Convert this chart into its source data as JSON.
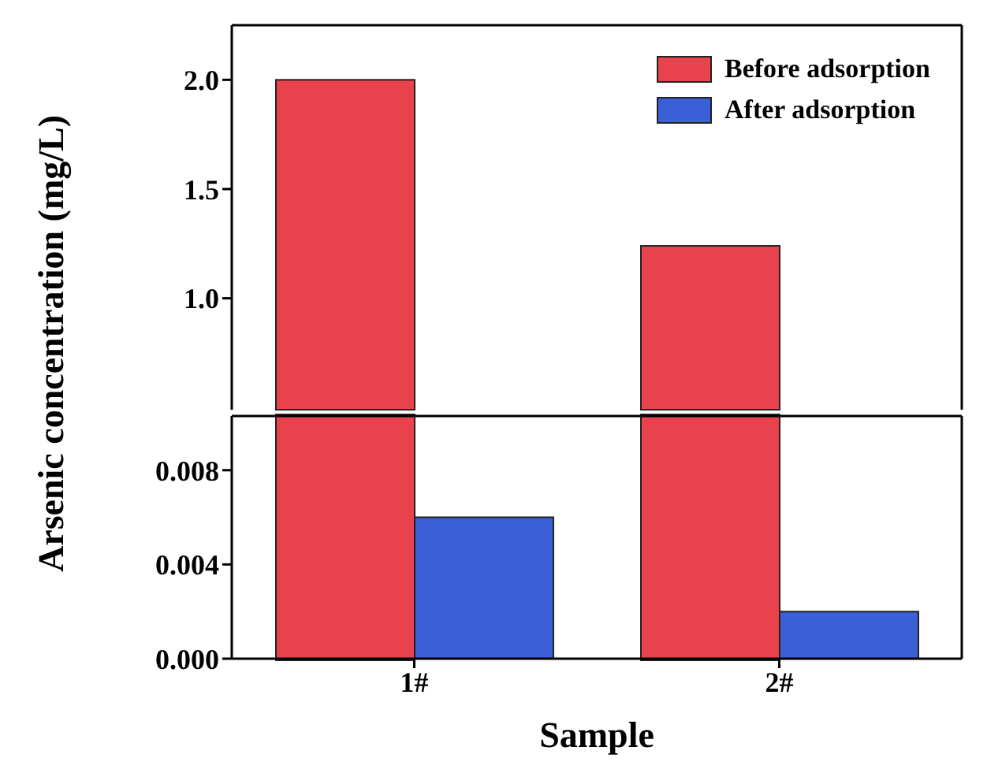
{
  "chart_data": [
    {
      "type": "bar",
      "categories": [
        null,
        null
      ],
      "series": [
        {
          "name": "Before adsorption",
          "color": "#e8424c",
          "values": [
            2.0,
            1.24
          ]
        },
        {
          "name": "After adsorption",
          "color": "#3a5fd6",
          "values": [
            null,
            null
          ]
        }
      ],
      "ylim": [
        0.49,
        2.25
      ],
      "yticks": [
        {
          "value": 1.0,
          "label": "1.0"
        },
        {
          "value": 1.5,
          "label": "1.5"
        },
        {
          "value": 2.0,
          "label": "2.0"
        }
      ],
      "tick_labels": "y",
      "legend": "top right",
      "grid": false
    },
    {
      "type": "bar",
      "categories": [
        "1#",
        "2#"
      ],
      "xlabel": "Sample",
      "ylabel": "Arsenic concentration (mg/L)",
      "series": [
        {
          "color": "#e8424c",
          "values": [
            null,
            null
          ]
        },
        {
          "color": "#3a5fd6",
          "values": [
            0.006,
            0.002
          ]
        }
      ],
      "ylim": [
        0,
        0.0103
      ],
      "yticks": [
        {
          "value": 0,
          "label": "0.000"
        },
        {
          "value": 0.004,
          "label": "0.004"
        },
        {
          "value": 0.008,
          "label": "0.008"
        }
      ],
      "legend": false,
      "grid": false
    }
  ]
}
